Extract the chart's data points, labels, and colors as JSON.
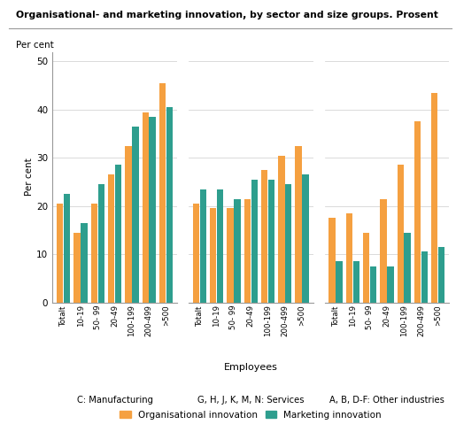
{
  "title": "Organisational- and marketing innovation, by sector and size groups. Prosent",
  "ylabel": "Per cent",
  "xlabel": "Employees",
  "ylim": [
    0,
    52
  ],
  "yticks": [
    0,
    10,
    20,
    30,
    40,
    50
  ],
  "orange_color": "#F5A040",
  "teal_color": "#2E9E8E",
  "sector_labels": [
    "C: Manufacturing",
    "G, H, J, K, M, N: Services",
    "A, B, D-F: Other industries"
  ],
  "legend_labels": [
    "Organisational innovation",
    "Marketing innovation"
  ],
  "groups": [
    {
      "label": "C: Manufacturing",
      "categories": [
        "Totalt",
        "10-19",
        "50- 99",
        "20-49",
        "100-199",
        "200-499",
        ">500"
      ],
      "organisational": [
        20.5,
        14.5,
        20.5,
        26.5,
        32.5,
        39.5,
        45.5
      ],
      "marketing": [
        22.5,
        16.5,
        24.5,
        28.5,
        36.5,
        38.5,
        40.5
      ]
    },
    {
      "label": "G, H, J, K, M, N: Services",
      "categories": [
        "Totalt",
        "10-19",
        "50- 99",
        "20-49",
        "100-199",
        "200-499",
        ">500"
      ],
      "organisational": [
        20.5,
        19.5,
        19.5,
        21.5,
        27.5,
        30.5,
        32.5
      ],
      "marketing": [
        23.5,
        23.5,
        21.5,
        25.5,
        25.5,
        24.5,
        26.5
      ]
    },
    {
      "label": "A, B, D-F: Other industries",
      "categories": [
        "Totalt",
        "10-19",
        "50- 99",
        "20-49",
        "100-199",
        "200-499",
        ">500"
      ],
      "organisational": [
        17.5,
        18.5,
        14.5,
        21.5,
        28.5,
        37.5,
        43.5
      ],
      "marketing": [
        8.5,
        8.5,
        7.5,
        7.5,
        14.5,
        10.5,
        11.5
      ]
    }
  ]
}
